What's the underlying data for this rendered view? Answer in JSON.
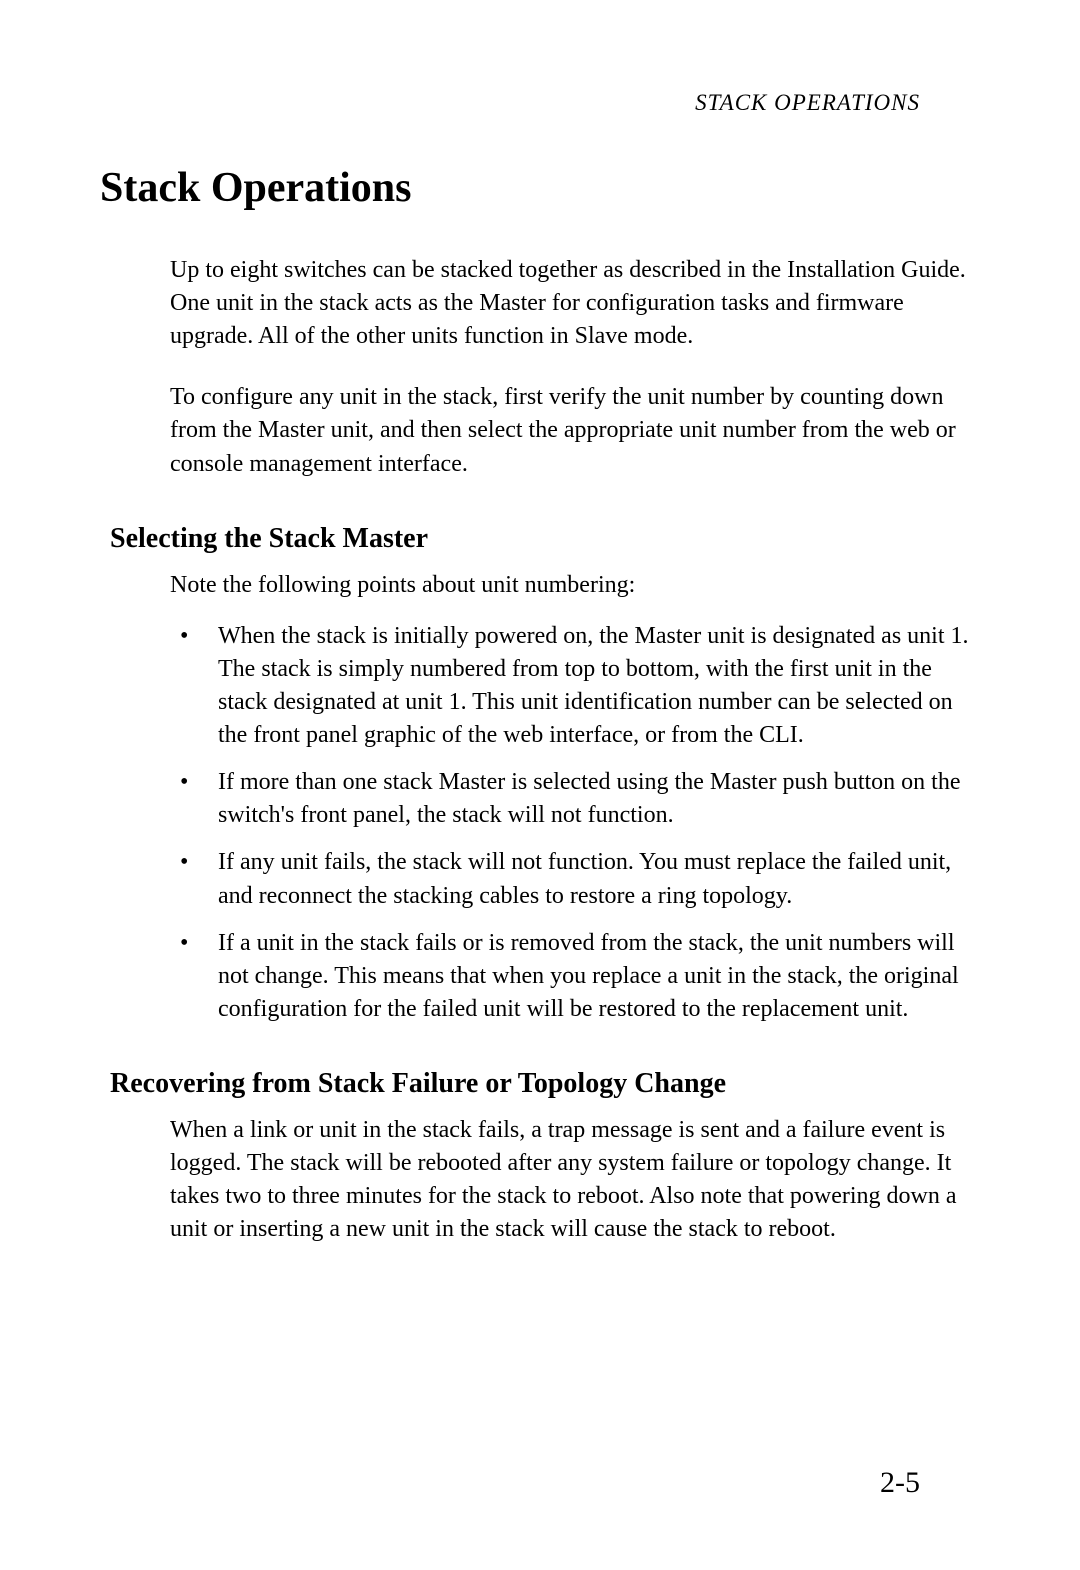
{
  "running_header": "STACK OPERATIONS",
  "main_title": "Stack Operations",
  "paragraphs": {
    "p1": "Up to eight switches can be stacked together as described in the Installation Guide. One unit in the stack acts as the Master for configuration tasks and firmware upgrade. All of the other units function in Slave mode.",
    "p2": "To configure any unit in the stack, first verify the unit number by counting down from the Master unit, and then select the appropriate unit number from the web or console management interface."
  },
  "section1": {
    "heading": "Selecting the Stack Master",
    "intro": "Note the following points about unit numbering:",
    "bullets": [
      "When the stack is initially powered on, the Master unit is designated as unit 1. The stack is simply numbered from top to bottom, with the first unit in the stack designated at unit 1. This unit identification number can be selected on the front panel graphic of the web interface, or from the CLI.",
      "If more than one stack Master is selected using the Master push button on the switch's front panel, the stack will not function.",
      "If any unit fails, the stack will not function. You must replace the failed unit, and reconnect the stacking cables to restore a ring topology.",
      "If a unit in the stack fails or is removed from the stack, the unit numbers will not change. This means that when you replace a unit in the stack, the original configuration for the failed unit will be restored to the replacement unit."
    ]
  },
  "section2": {
    "heading": "Recovering from Stack Failure or Topology Change",
    "body": "When a link or unit in the stack fails, a trap message is sent and a failure event is logged. The stack will be rebooted after any system failure or topology change. It takes two to three minutes for the stack to reboot. Also note that powering down a unit or inserting a new unit in the stack will cause the stack to reboot."
  },
  "page_number": "2-5",
  "bullet_char": "•"
}
